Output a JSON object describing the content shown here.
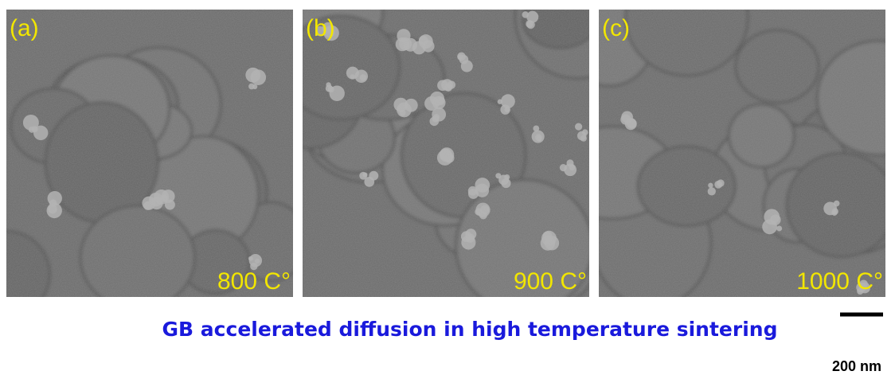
{
  "panels": [
    {
      "label": "(a)",
      "temperature": "800 C°"
    },
    {
      "label": "(b)",
      "temperature": "900 C°"
    },
    {
      "label": "(c)",
      "temperature": "1000 C°"
    }
  ],
  "caption": "GB accelerated diffusion in high temperature sintering",
  "scale_bar": {
    "label": "200 nm"
  }
}
